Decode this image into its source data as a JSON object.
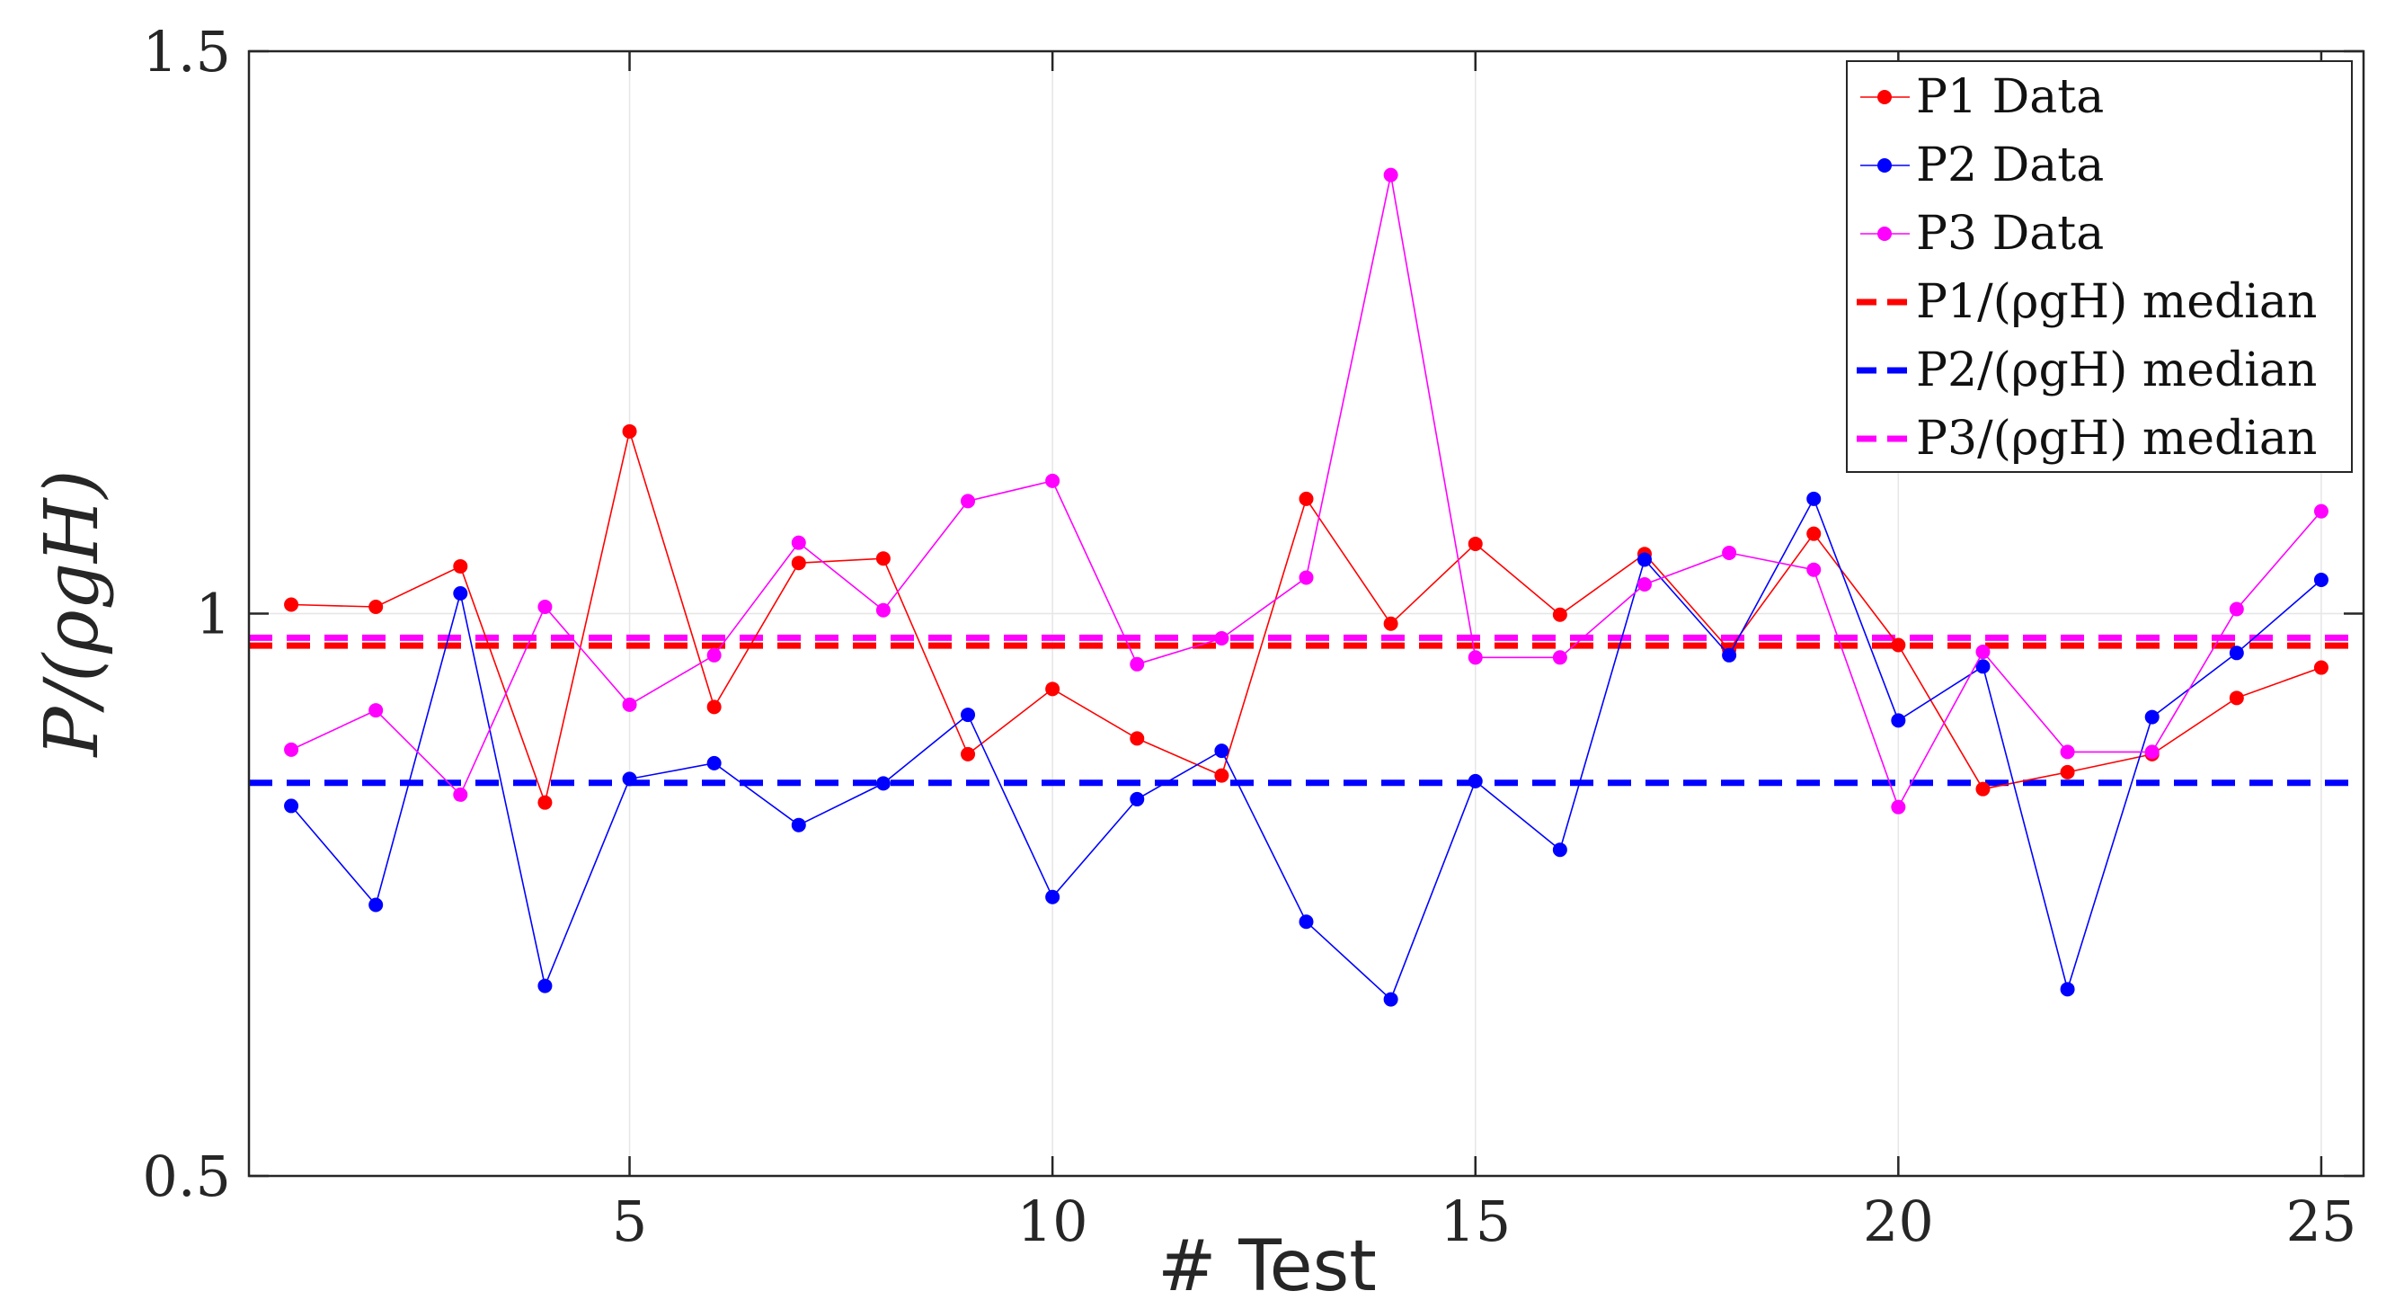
{
  "chart_data": {
    "type": "line",
    "xlabel": "# Test",
    "ylabel": "P/(ρgH)",
    "xlim": [
      0.5,
      25.5
    ],
    "ylim": [
      0.5,
      1.5
    ],
    "xticks": [
      5,
      10,
      15,
      20,
      25
    ],
    "xtick_labels": [
      "5",
      "10",
      "15",
      "20",
      "25"
    ],
    "yticks": [
      0.5,
      1,
      1.5
    ],
    "ytick_labels": [
      "0.5",
      "1",
      "1.5"
    ],
    "grid": true,
    "legend_position": "top-right",
    "x": [
      1,
      2,
      3,
      4,
      5,
      6,
      7,
      8,
      9,
      10,
      11,
      12,
      13,
      14,
      15,
      16,
      17,
      18,
      19,
      20,
      21,
      22,
      23,
      24,
      25
    ],
    "series": [
      {
        "name": "P1 Data",
        "color": "#ff0000",
        "values": [
          1.008,
          1.006,
          1.042,
          0.832,
          1.162,
          0.917,
          1.045,
          1.049,
          0.875,
          0.933,
          0.889,
          0.856,
          1.102,
          0.991,
          1.062,
          0.999,
          1.053,
          0.968,
          1.071,
          0.972,
          0.844,
          0.859,
          0.875,
          0.925,
          0.952
        ]
      },
      {
        "name": "P2 Data",
        "color": "#0000ff",
        "values": [
          0.829,
          0.741,
          1.018,
          0.669,
          0.853,
          0.867,
          0.812,
          0.849,
          0.91,
          0.748,
          0.835,
          0.878,
          0.726,
          0.657,
          0.851,
          0.79,
          1.048,
          0.963,
          1.102,
          0.905,
          0.953,
          0.666,
          0.908,
          0.965,
          1.03
        ]
      },
      {
        "name": "P3 Data",
        "color": "#ff00ff",
        "values": [
          0.879,
          0.914,
          0.839,
          1.006,
          0.919,
          0.963,
          1.063,
          1.003,
          1.1,
          1.118,
          0.955,
          0.978,
          1.032,
          1.39,
          0.961,
          0.961,
          1.026,
          1.054,
          1.039,
          0.828,
          0.966,
          0.877,
          0.877,
          1.004,
          1.091
        ]
      }
    ],
    "reference_lines": [
      {
        "name": "P1/(ρgH) median",
        "color": "#ff0000",
        "value": 0.9715
      },
      {
        "name": "P2/(ρgH) median",
        "color": "#0000ff",
        "value": 0.8495
      },
      {
        "name": "P3/(ρgH) median",
        "color": "#ff00ff",
        "value": 0.9785
      }
    ]
  }
}
